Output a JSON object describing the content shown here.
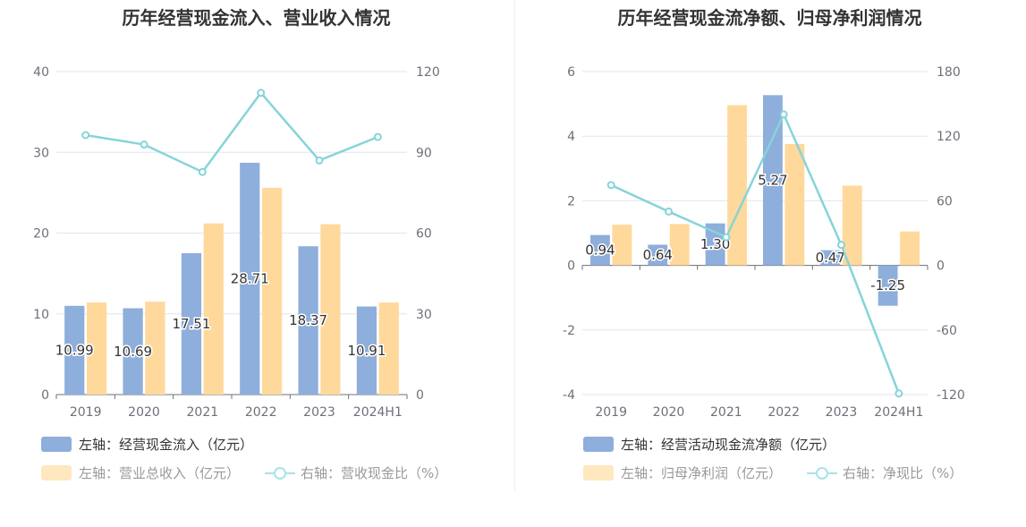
{
  "chart_data": [
    {
      "type": "bar",
      "title": "历年经营现金流入、营业收入情况",
      "categories": [
        "2019",
        "2020",
        "2021",
        "2022",
        "2023",
        "2024H1"
      ],
      "left_axis": {
        "ylim": [
          0,
          40
        ],
        "ticks": [
          "0",
          "10",
          "20",
          "30",
          "40"
        ]
      },
      "right_axis": {
        "ylim": [
          0,
          120
        ],
        "ticks": [
          "0",
          "30",
          "60",
          "90",
          "120"
        ]
      },
      "series": [
        {
          "name": "左轴：经营现金流入（亿元）",
          "type": "bar",
          "axis": "left",
          "color": "#8eaedc",
          "values": [
            10.99,
            10.69,
            17.51,
            28.71,
            18.37,
            10.91
          ],
          "labels": [
            "10.99",
            "10.69",
            "17.51",
            "28.71",
            "18.37",
            "10.91"
          ]
        },
        {
          "name": "左轴：营业总收入（亿元）",
          "type": "bar",
          "axis": "left",
          "color": "#ffd99b",
          "values": [
            11.4,
            11.5,
            21.2,
            25.6,
            21.1,
            11.4
          ]
        },
        {
          "name": "右轴：营收现金比（%）",
          "type": "line",
          "axis": "right",
          "color": "#86d4d9",
          "values": [
            96.4,
            92.9,
            82.7,
            112.1,
            87.0,
            95.7
          ]
        }
      ],
      "legend": {
        "position": "bottom"
      },
      "grid": true
    },
    {
      "type": "bar",
      "title": "历年经营现金流净额、归母净利润情况",
      "categories": [
        "2019",
        "2020",
        "2021",
        "2022",
        "2023",
        "2024H1"
      ],
      "left_axis": {
        "ylim": [
          -4,
          6
        ],
        "ticks": [
          "-4",
          "-2",
          "0",
          "2",
          "4",
          "6"
        ]
      },
      "right_axis": {
        "ylim": [
          -120,
          180
        ],
        "ticks": [
          "-120",
          "-60",
          "0",
          "60",
          "120",
          "180"
        ]
      },
      "series": [
        {
          "name": "左轴：经营活动现金流净额（亿元）",
          "type": "bar",
          "axis": "left",
          "color": "#8eaedc",
          "values": [
            0.94,
            0.64,
            1.3,
            5.27,
            0.47,
            -1.25
          ],
          "labels": [
            "0.94",
            "0.64",
            "1.30",
            "5.27",
            "0.47",
            "-1.25"
          ]
        },
        {
          "name": "左轴：归母净利润（亿元）",
          "type": "bar",
          "axis": "left",
          "color": "#ffd99b",
          "values": [
            1.26,
            1.28,
            4.96,
            3.76,
            2.47,
            1.05
          ]
        },
        {
          "name": "右轴：净现比（%）",
          "type": "line",
          "axis": "right",
          "color": "#86d4d9",
          "values": [
            74.6,
            50.0,
            26.2,
            140.2,
            19.0,
            -119.0
          ]
        }
      ],
      "legend": {
        "position": "bottom"
      },
      "grid": true
    }
  ]
}
